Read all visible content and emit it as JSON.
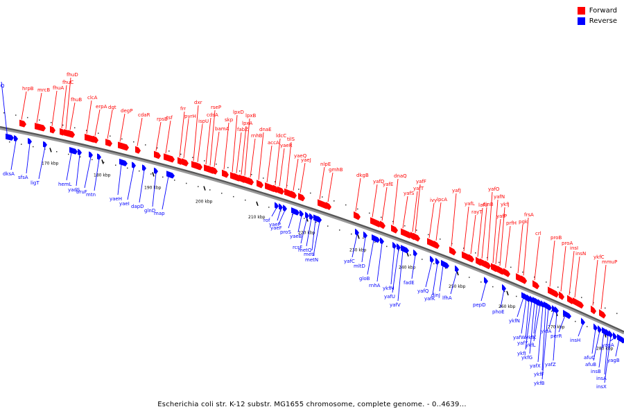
{
  "legend": {
    "forward_label": "Forward",
    "reverse_label": "Reverse",
    "forward_color": "#ff0000",
    "reverse_color": "#0000ff"
  },
  "caption": "Escherichia coli str. K-12 substr. MG1655 chromosome, complete genome. - 0..4639...",
  "kbp_ticks": [
    "170 kbp",
    "180 kbp",
    "190 kbp",
    "200 kbp",
    "210 kbp",
    "220 kbp",
    "230 kbp",
    "240 kbp",
    "250 kbp",
    "260 kbp",
    "270 kbp",
    "280 kbp"
  ],
  "forward_genes": [
    "fhuD",
    "fhuC",
    "hrpB",
    "mrcB",
    "fhuA",
    "fhuB",
    "clcA",
    "erpA",
    "dgt",
    "degP",
    "cdaR",
    "rpsB",
    "tsf",
    "frr",
    "pyrH",
    "dxr",
    "ispU",
    "rseP",
    "cdsA",
    "bamA",
    "skp",
    "lpxD",
    "fabZ",
    "lpxA",
    "lpxB",
    "rnhB",
    "dnaE",
    "accA",
    "ldcC",
    "yaeR",
    "tilS",
    "yaeQ",
    "yaeJ",
    "nlpE",
    "gmhB",
    "dkgB",
    "yafD",
    "yafE",
    "dnaQ",
    "yafS",
    "yafT",
    "yafF",
    "ivy",
    "lpcA",
    "yafJ",
    "yafL",
    "rayT",
    "lafU",
    "dinB",
    "yafO",
    "yafN",
    "yafP",
    "ykfJ",
    "prfH",
    "pgk",
    "frsA",
    "crl",
    "proB",
    "proA",
    "insI",
    "insN",
    "ykfC",
    "mmuP"
  ],
  "reverse_genes": [
    "gluQ",
    "dksA",
    "sfsA",
    "ligT",
    "hemL",
    "yadS",
    "bruF",
    "mtn",
    "yaeH",
    "yaeI",
    "dapD",
    "glnD",
    "map",
    "rof",
    "yaeP",
    "yaeF",
    "proS",
    "yaeB",
    "rcsF",
    "metQ",
    "metI",
    "metN",
    "yafC",
    "mltD",
    "gloB",
    "rnhA",
    "ykfM",
    "yafU",
    "yafV",
    "fadE",
    "yafQ",
    "yafK",
    "dinJ",
    "lfhA",
    "pepD",
    "phoE",
    "ykfN",
    "yafW",
    "yafY",
    "ykfI",
    "ykfG",
    "ykfK",
    "ykfL",
    "yafX",
    "ykfF",
    "ykfB",
    "ykfA",
    "yafZ",
    "perR",
    "insH",
    "afuC",
    "afuB",
    "insB",
    "insA",
    "insX",
    "yagA",
    "yagB"
  ]
}
